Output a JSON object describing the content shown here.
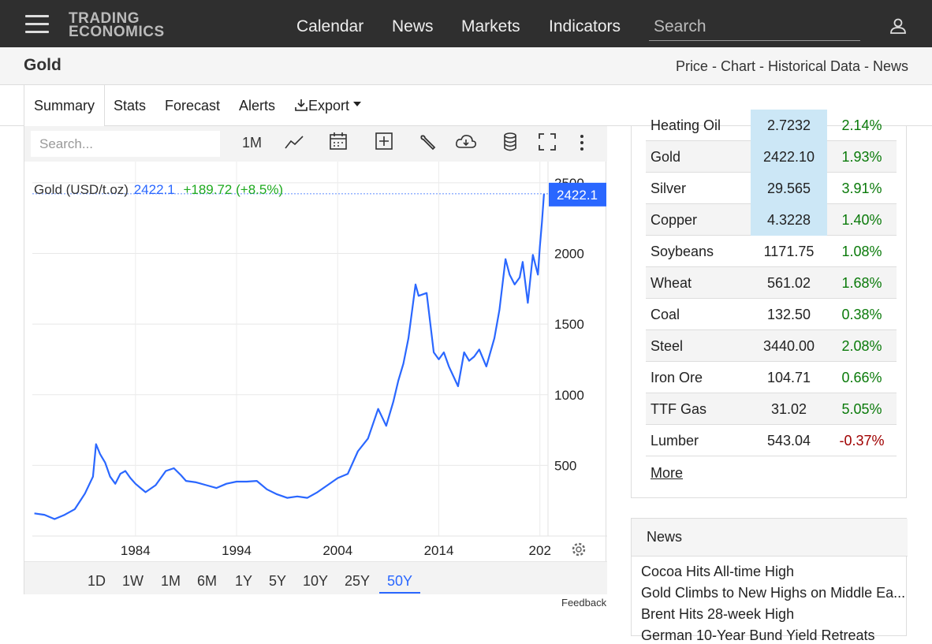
{
  "header": {
    "logo_line1": "TRADING",
    "logo_line2": "ECONOMICS",
    "nav": [
      "Calendar",
      "News",
      "Markets",
      "Indicators"
    ],
    "search_placeholder": "Search"
  },
  "subheader": {
    "title": "Gold",
    "links": "Price - Chart - Historical Data - News"
  },
  "tabs": [
    "Summary",
    "Stats",
    "Forecast",
    "Alerts",
    "Export"
  ],
  "chart_toolbar": {
    "search_placeholder": "Search...",
    "interval": "1M"
  },
  "chart_legend": {
    "name": "Gold (USD/t.oz)",
    "value": "2422.1",
    "change": "+189.72 (+8.5%)"
  },
  "current_price_label": "2422.1",
  "periods": [
    "1D",
    "1W",
    "1M",
    "6M",
    "1Y",
    "5Y",
    "10Y",
    "25Y",
    "50Y"
  ],
  "active_period": "50Y",
  "feedback": "Feedback",
  "chart_data": {
    "type": "line",
    "series": [
      {
        "name": "Gold (USD/t.oz)",
        "points": [
          [
            1974.0,
            160
          ],
          [
            1975.0,
            150
          ],
          [
            1976.0,
            120
          ],
          [
            1977.0,
            150
          ],
          [
            1978.0,
            190
          ],
          [
            1979.0,
            300
          ],
          [
            1979.8,
            420
          ],
          [
            1980.1,
            650
          ],
          [
            1980.5,
            580
          ],
          [
            1981.0,
            520
          ],
          [
            1981.5,
            420
          ],
          [
            1982.0,
            370
          ],
          [
            1982.5,
            440
          ],
          [
            1983.0,
            460
          ],
          [
            1983.5,
            410
          ],
          [
            1984.0,
            370
          ],
          [
            1984.5,
            340
          ],
          [
            1985.0,
            310
          ],
          [
            1986.0,
            360
          ],
          [
            1987.0,
            460
          ],
          [
            1987.8,
            480
          ],
          [
            1988.5,
            430
          ],
          [
            1989.0,
            390
          ],
          [
            1990.0,
            380
          ],
          [
            1991.0,
            360
          ],
          [
            1992.0,
            340
          ],
          [
            1993.0,
            370
          ],
          [
            1994.0,
            385
          ],
          [
            1995.0,
            385
          ],
          [
            1996.0,
            390
          ],
          [
            1997.0,
            330
          ],
          [
            1998.0,
            295
          ],
          [
            1999.0,
            270
          ],
          [
            2000.0,
            280
          ],
          [
            2001.0,
            270
          ],
          [
            2002.0,
            310
          ],
          [
            2003.0,
            360
          ],
          [
            2004.0,
            410
          ],
          [
            2005.0,
            440
          ],
          [
            2006.0,
            600
          ],
          [
            2007.0,
            690
          ],
          [
            2008.0,
            900
          ],
          [
            2008.8,
            780
          ],
          [
            2009.5,
            950
          ],
          [
            2010.0,
            1100
          ],
          [
            2010.5,
            1220
          ],
          [
            2011.0,
            1400
          ],
          [
            2011.7,
            1780
          ],
          [
            2012.0,
            1700
          ],
          [
            2012.8,
            1720
          ],
          [
            2013.5,
            1300
          ],
          [
            2014.0,
            1250
          ],
          [
            2014.5,
            1300
          ],
          [
            2015.0,
            1200
          ],
          [
            2015.9,
            1060
          ],
          [
            2016.5,
            1300
          ],
          [
            2017.0,
            1240
          ],
          [
            2017.5,
            1270
          ],
          [
            2018.0,
            1320
          ],
          [
            2018.7,
            1200
          ],
          [
            2019.5,
            1400
          ],
          [
            2020.0,
            1600
          ],
          [
            2020.6,
            1960
          ],
          [
            2021.0,
            1850
          ],
          [
            2021.5,
            1780
          ],
          [
            2022.0,
            1830
          ],
          [
            2022.3,
            1940
          ],
          [
            2022.8,
            1650
          ],
          [
            2023.3,
            1990
          ],
          [
            2023.8,
            1850
          ],
          [
            2024.0,
            2050
          ],
          [
            2024.2,
            2220
          ],
          [
            2024.4,
            2422.1
          ]
        ]
      }
    ],
    "x_ticks": [
      "1984",
      "1994",
      "2004",
      "2014",
      "202"
    ],
    "y_ticks": [
      "500",
      "1000",
      "1500",
      "2000",
      "2500"
    ],
    "xlim": [
      1973.8,
      2024.8
    ],
    "ylim": [
      0,
      2650
    ]
  },
  "commodities": [
    {
      "name": "Heating Oil",
      "price": "2.7232",
      "change": "2.14%",
      "color": "#0a7a0a",
      "highlight": true,
      "alt": false
    },
    {
      "name": "Gold",
      "price": "2422.10",
      "change": "1.93%",
      "color": "#0a7a0a",
      "highlight": true,
      "alt": true
    },
    {
      "name": "Silver",
      "price": "29.565",
      "change": "3.91%",
      "color": "#0a7a0a",
      "highlight": true,
      "alt": false
    },
    {
      "name": "Copper",
      "price": "4.3228",
      "change": "1.40%",
      "color": "#0a7a0a",
      "highlight": true,
      "alt": true
    },
    {
      "name": "Soybeans",
      "price": "1171.75",
      "change": "1.08%",
      "color": "#0a7a0a",
      "highlight": false,
      "alt": false
    },
    {
      "name": "Wheat",
      "price": "561.02",
      "change": "1.68%",
      "color": "#0a7a0a",
      "highlight": false,
      "alt": true
    },
    {
      "name": "Coal",
      "price": "132.50",
      "change": "0.38%",
      "color": "#0a7a0a",
      "highlight": false,
      "alt": false
    },
    {
      "name": "Steel",
      "price": "3440.00",
      "change": "2.08%",
      "color": "#0a7a0a",
      "highlight": false,
      "alt": true
    },
    {
      "name": "Iron Ore",
      "price": "104.71",
      "change": "0.66%",
      "color": "#0a7a0a",
      "highlight": false,
      "alt": false
    },
    {
      "name": "TTF Gas",
      "price": "31.02",
      "change": "5.05%",
      "color": "#0a7a0a",
      "highlight": false,
      "alt": true
    },
    {
      "name": "Lumber",
      "price": "543.04",
      "change": "-0.37%",
      "color": "#a00000",
      "highlight": false,
      "alt": false
    }
  ],
  "more_label": "More",
  "news": {
    "title": "News",
    "items": [
      "Cocoa Hits All-time High",
      "Gold Climbs to New Highs on Middle Ea...",
      "Brent Hits 28-week High",
      "German 10-Year Bund Yield Retreats"
    ]
  },
  "colors": {
    "topbar": "#2f2f2f",
    "line": "#2a67ff",
    "positive": "#0a7a0a",
    "negative": "#a00000",
    "highlight": "#cce7f6"
  }
}
